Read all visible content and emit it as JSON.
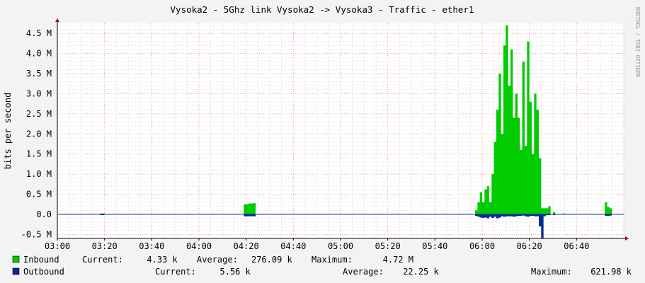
{
  "chart_data": {
    "type": "area",
    "title": "Vysoka2 - 5Ghz link Vysoka2 -> Vysoka3 - Traffic - ether1",
    "ylabel": "bits per second",
    "watermark": "RRDTOOL / TOBI OETIKER",
    "x_ticks": [
      "03:00",
      "03:20",
      "03:40",
      "04:00",
      "04:20",
      "04:40",
      "05:00",
      "05:20",
      "05:40",
      "06:00",
      "06:20",
      "06:40"
    ],
    "x_range_minutes": [
      0,
      240
    ],
    "y_ticks": [
      "-0.5 M",
      "0.0",
      "0.5 M",
      "1.0 M",
      "1.5 M",
      "2.0 M",
      "2.5 M",
      "3.0 M",
      "3.5 M",
      "4.0 M",
      "4.5 M"
    ],
    "ylim": [
      -0.6,
      4.75
    ],
    "y_unit": "M bits per second",
    "grid": true,
    "series": [
      {
        "name": "Inbound",
        "color": "#00cc00",
        "x_minutes": [
          0,
          17,
          18,
          19,
          20,
          78,
          79,
          80,
          81,
          82,
          83,
          84,
          176,
          177,
          178,
          179,
          180,
          181,
          182,
          183,
          184,
          185,
          186,
          187,
          188,
          189,
          190,
          191,
          192,
          193,
          194,
          195,
          196,
          197,
          198,
          199,
          200,
          201,
          202,
          203,
          204,
          205,
          206,
          207,
          208,
          209,
          210,
          211,
          212,
          213,
          214,
          215,
          216,
          217,
          218,
          219,
          230,
          231,
          232,
          233,
          234,
          235,
          236,
          237,
          238,
          239,
          240
        ],
        "values": [
          0,
          0,
          0.02,
          0.02,
          0,
          0,
          0.25,
          0.25,
          0.27,
          0.27,
          0.28,
          0,
          0,
          0.1,
          0.3,
          0.55,
          0.3,
          0.62,
          0.7,
          0.3,
          1.0,
          1.8,
          2.6,
          3.5,
          2.0,
          4.2,
          4.7,
          3.2,
          4.1,
          2.4,
          3.0,
          2.4,
          1.6,
          3.8,
          1.7,
          4.3,
          2.8,
          1.5,
          3.0,
          2.6,
          1.4,
          0.15,
          0.15,
          0.15,
          0.2,
          0,
          0.05,
          0,
          0,
          0,
          0.02,
          0,
          0,
          0,
          0,
          0,
          0,
          0,
          0.3,
          0.18,
          0.15,
          0,
          0,
          0,
          0,
          0,
          0
        ]
      },
      {
        "name": "Outbound",
        "color": "#002a97",
        "x_minutes": [
          0,
          17,
          18,
          19,
          20,
          78,
          79,
          80,
          81,
          82,
          83,
          84,
          176,
          177,
          178,
          179,
          180,
          181,
          182,
          183,
          184,
          185,
          186,
          187,
          188,
          189,
          190,
          191,
          192,
          193,
          194,
          195,
          196,
          197,
          198,
          199,
          200,
          201,
          202,
          203,
          204,
          205,
          206,
          207,
          208,
          209,
          210,
          211,
          212,
          213,
          214,
          215,
          216,
          217,
          218,
          219,
          230,
          231,
          232,
          233,
          234,
          235,
          236,
          237,
          238,
          239,
          240
        ],
        "values": [
          0,
          0,
          -0.02,
          -0.02,
          0,
          0,
          -0.05,
          -0.05,
          -0.05,
          -0.05,
          -0.05,
          0,
          0,
          -0.04,
          -0.06,
          -0.08,
          -0.09,
          -0.08,
          -0.1,
          -0.06,
          -0.09,
          -0.06,
          -0.1,
          -0.08,
          -0.05,
          -0.06,
          -0.05,
          -0.05,
          -0.05,
          -0.06,
          -0.05,
          -0.04,
          -0.04,
          -0.03,
          -0.05,
          -0.06,
          -0.04,
          -0.04,
          -0.05,
          -0.05,
          -0.3,
          -0.6,
          -0.05,
          -0.02,
          -0.02,
          0,
          -0.02,
          0,
          0,
          0,
          0,
          0,
          0,
          0,
          0,
          0,
          0,
          0,
          -0.04,
          -0.04,
          -0.03,
          0,
          0,
          0,
          0,
          0,
          0
        ]
      }
    ]
  },
  "legend": {
    "inbound": {
      "label": "Inbound",
      "current_label": "Current:",
      "current": "4.33 k",
      "average_label": "Average:",
      "average": "276.09 k",
      "maximum_label": "Maximum:",
      "maximum": "4.72 M"
    },
    "outbound": {
      "label": "Outbound",
      "current_label": "Current:",
      "current": "5.56 k",
      "average_label": "Average:",
      "average": "22.25 k",
      "maximum_label": "Maximum:",
      "maximum": "621.98 k"
    }
  }
}
